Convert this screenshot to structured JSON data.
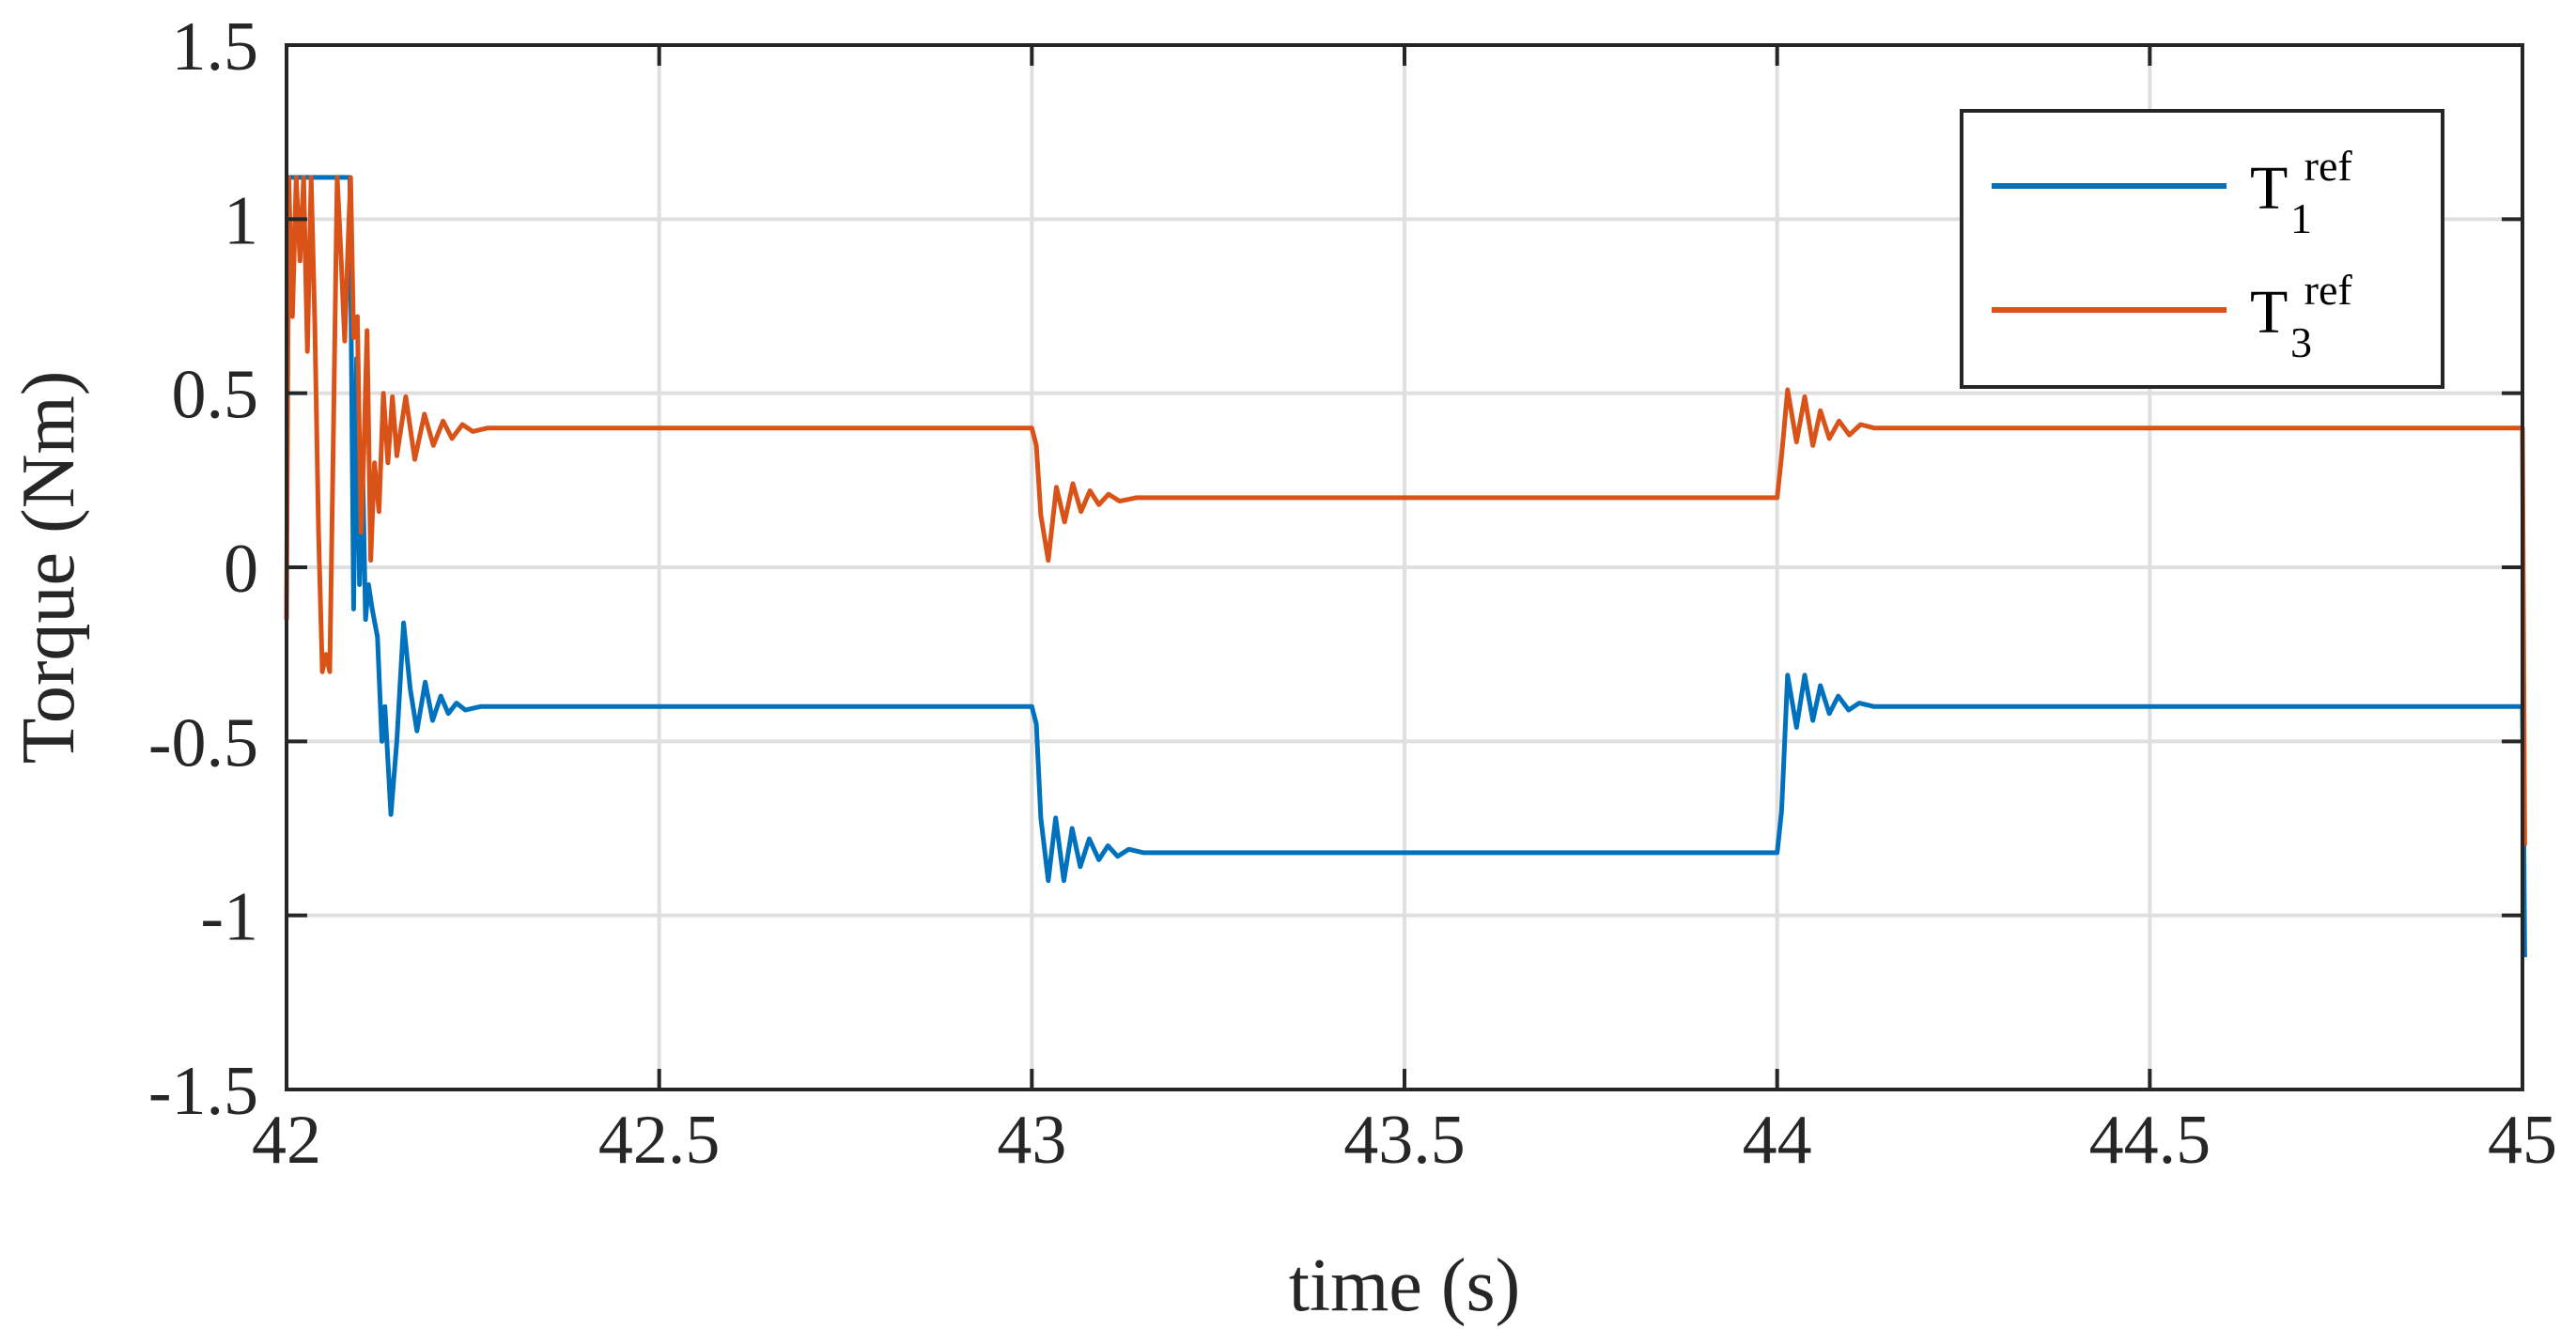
{
  "chart_data": {
    "type": "line",
    "xlabel": "time (s)",
    "ylabel": "Torque (Nm)",
    "xlim": [
      42,
      45
    ],
    "ylim": [
      -1.5,
      1.5
    ],
    "xticks": [
      "42",
      "42.5",
      "43",
      "43.5",
      "44",
      "44.5",
      "45"
    ],
    "yticks": [
      "1.5",
      "1",
      "0.5",
      "0",
      "-0.5",
      "-1",
      "-1.5"
    ],
    "grid": true,
    "legend_position": "top-right",
    "series": [
      {
        "name": "T1 ref",
        "name_base": "T",
        "name_sub": "1",
        "name_sup": "ref",
        "color": "#0072BD",
        "points": [
          [
            42.0,
            1.12
          ],
          [
            42.085,
            1.12
          ],
          [
            42.09,
            -0.12
          ],
          [
            42.094,
            0.6
          ],
          [
            42.098,
            -0.05
          ],
          [
            42.102,
            0.3
          ],
          [
            42.106,
            -0.15
          ],
          [
            42.11,
            -0.05
          ],
          [
            42.115,
            -0.12
          ],
          [
            42.122,
            -0.2
          ],
          [
            42.128,
            -0.5
          ],
          [
            42.132,
            -0.4
          ],
          [
            42.14,
            -0.71
          ],
          [
            42.148,
            -0.5
          ],
          [
            42.157,
            -0.16
          ],
          [
            42.166,
            -0.35
          ],
          [
            42.175,
            -0.47
          ],
          [
            42.186,
            -0.33
          ],
          [
            42.196,
            -0.44
          ],
          [
            42.207,
            -0.37
          ],
          [
            42.217,
            -0.42
          ],
          [
            42.228,
            -0.39
          ],
          [
            42.24,
            -0.41
          ],
          [
            42.26,
            -0.4
          ],
          [
            43.0,
            -0.4
          ],
          [
            43.006,
            -0.45
          ],
          [
            43.012,
            -0.72
          ],
          [
            43.022,
            -0.9
          ],
          [
            43.032,
            -0.72
          ],
          [
            43.043,
            -0.9
          ],
          [
            43.054,
            -0.75
          ],
          [
            43.065,
            -0.86
          ],
          [
            43.077,
            -0.78
          ],
          [
            43.09,
            -0.84
          ],
          [
            43.102,
            -0.8
          ],
          [
            43.115,
            -0.83
          ],
          [
            43.13,
            -0.81
          ],
          [
            43.15,
            -0.82
          ],
          [
            43.3,
            -0.82
          ],
          [
            44.0,
            -0.82
          ],
          [
            44.006,
            -0.7
          ],
          [
            44.014,
            -0.31
          ],
          [
            44.026,
            -0.46
          ],
          [
            44.037,
            -0.31
          ],
          [
            44.048,
            -0.44
          ],
          [
            44.058,
            -0.34
          ],
          [
            44.07,
            -0.42
          ],
          [
            44.082,
            -0.37
          ],
          [
            44.096,
            -0.41
          ],
          [
            44.11,
            -0.39
          ],
          [
            44.13,
            -0.4
          ],
          [
            45.0,
            -0.4
          ],
          [
            45.002,
            -0.83
          ],
          [
            45.003,
            -1.12
          ]
        ]
      },
      {
        "name": "T3 ref",
        "name_base": "T",
        "name_sub": "3",
        "name_sup": "ref",
        "color": "#D95319",
        "points": [
          [
            42.0,
            -0.15
          ],
          [
            42.003,
            1.12
          ],
          [
            42.008,
            0.72
          ],
          [
            42.013,
            1.12
          ],
          [
            42.018,
            0.88
          ],
          [
            42.023,
            1.12
          ],
          [
            42.028,
            0.62
          ],
          [
            42.033,
            1.12
          ],
          [
            42.038,
            0.7
          ],
          [
            42.043,
            0.1
          ],
          [
            42.048,
            -0.3
          ],
          [
            42.053,
            -0.25
          ],
          [
            42.058,
            -0.3
          ],
          [
            42.063,
            0.4
          ],
          [
            42.068,
            1.12
          ],
          [
            42.073,
            0.9
          ],
          [
            42.078,
            0.65
          ],
          [
            42.083,
            0.95
          ],
          [
            42.086,
            1.12
          ],
          [
            42.09,
            0.66
          ],
          [
            42.095,
            0.72
          ],
          [
            42.1,
            0.1
          ],
          [
            42.104,
            0.35
          ],
          [
            42.108,
            0.68
          ],
          [
            42.113,
            0.02
          ],
          [
            42.118,
            0.3
          ],
          [
            42.124,
            0.16
          ],
          [
            42.13,
            0.5
          ],
          [
            42.136,
            0.3
          ],
          [
            42.142,
            0.49
          ],
          [
            42.148,
            0.32
          ],
          [
            42.16,
            0.49
          ],
          [
            42.172,
            0.31
          ],
          [
            42.185,
            0.44
          ],
          [
            42.197,
            0.35
          ],
          [
            42.21,
            0.42
          ],
          [
            42.222,
            0.37
          ],
          [
            42.236,
            0.41
          ],
          [
            42.25,
            0.39
          ],
          [
            42.27,
            0.4
          ],
          [
            43.0,
            0.4
          ],
          [
            43.006,
            0.35
          ],
          [
            43.012,
            0.15
          ],
          [
            43.022,
            0.02
          ],
          [
            43.033,
            0.23
          ],
          [
            43.044,
            0.13
          ],
          [
            43.055,
            0.24
          ],
          [
            43.066,
            0.16
          ],
          [
            43.078,
            0.22
          ],
          [
            43.09,
            0.18
          ],
          [
            43.103,
            0.21
          ],
          [
            43.118,
            0.19
          ],
          [
            43.14,
            0.2
          ],
          [
            44.0,
            0.2
          ],
          [
            44.006,
            0.32
          ],
          [
            44.014,
            0.51
          ],
          [
            44.026,
            0.36
          ],
          [
            44.037,
            0.49
          ],
          [
            44.048,
            0.35
          ],
          [
            44.058,
            0.45
          ],
          [
            44.07,
            0.37
          ],
          [
            44.083,
            0.42
          ],
          [
            44.097,
            0.38
          ],
          [
            44.112,
            0.41
          ],
          [
            44.13,
            0.4
          ],
          [
            45.0,
            0.4
          ],
          [
            45.003,
            -0.8
          ]
        ]
      }
    ]
  }
}
